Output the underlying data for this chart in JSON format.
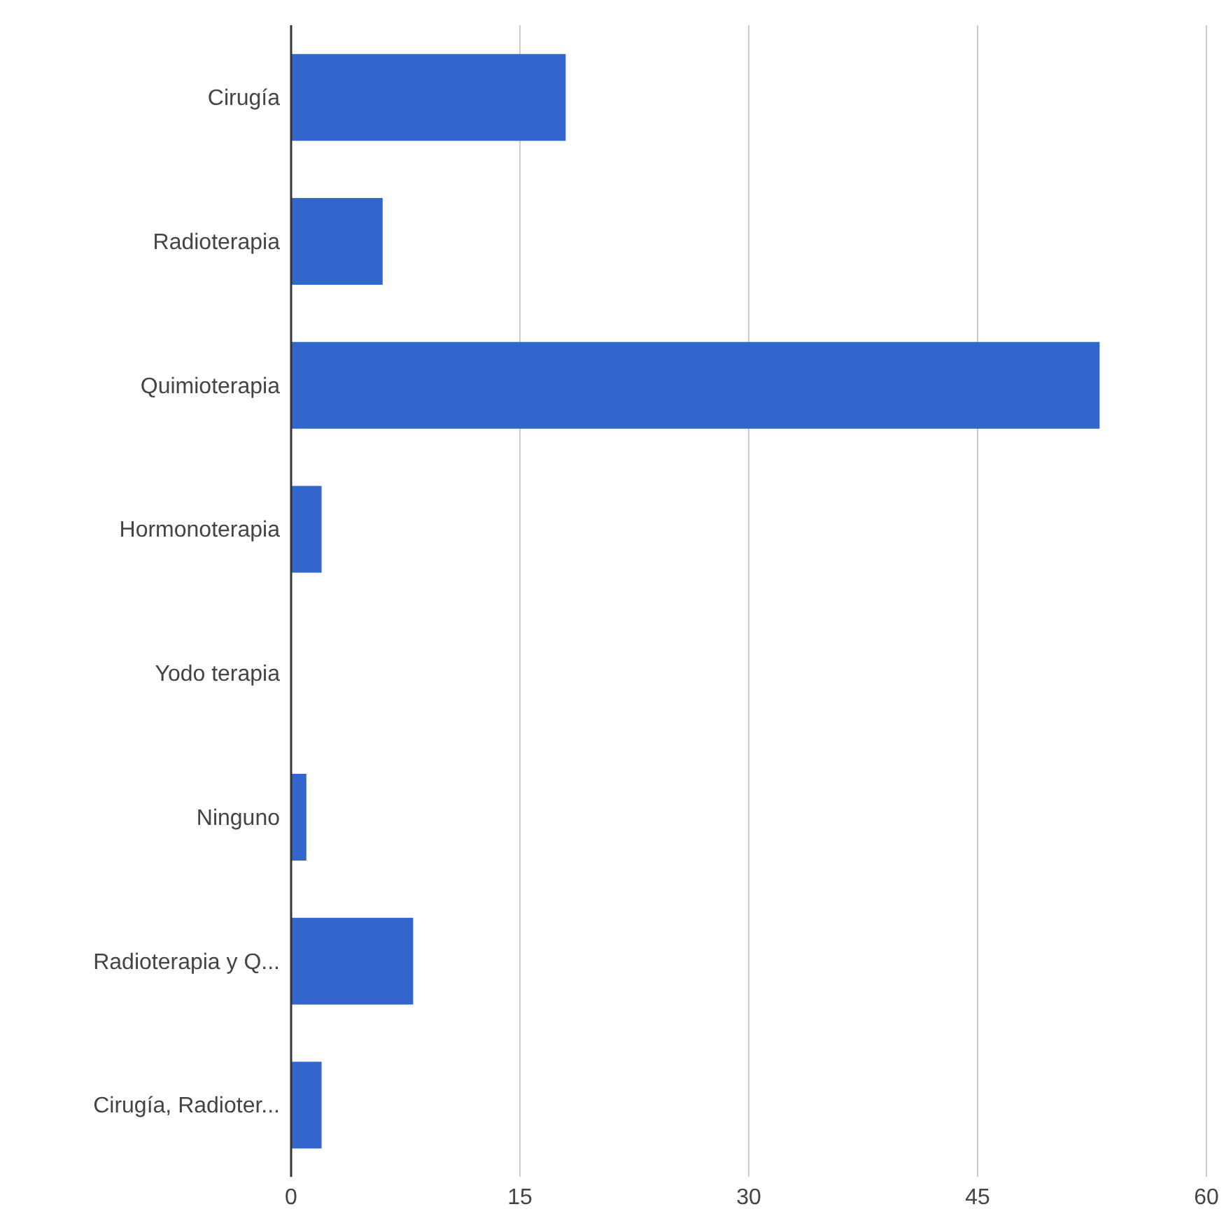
{
  "chart_data": {
    "type": "bar",
    "orientation": "horizontal",
    "categories": [
      "Cirugía",
      "Radioterapia",
      "Quimioterapia",
      "Hormonoterapia",
      "Yodo terapia",
      "Ninguno",
      "Radioterapia y Q...",
      "Cirugía, Radioter..."
    ],
    "values": [
      18,
      6,
      53,
      2,
      0,
      1,
      8,
      2
    ],
    "color": "#3366cc",
    "xlim": [
      0,
      60
    ],
    "xticks": [
      0,
      15,
      30,
      45,
      60
    ],
    "grid": "x"
  }
}
